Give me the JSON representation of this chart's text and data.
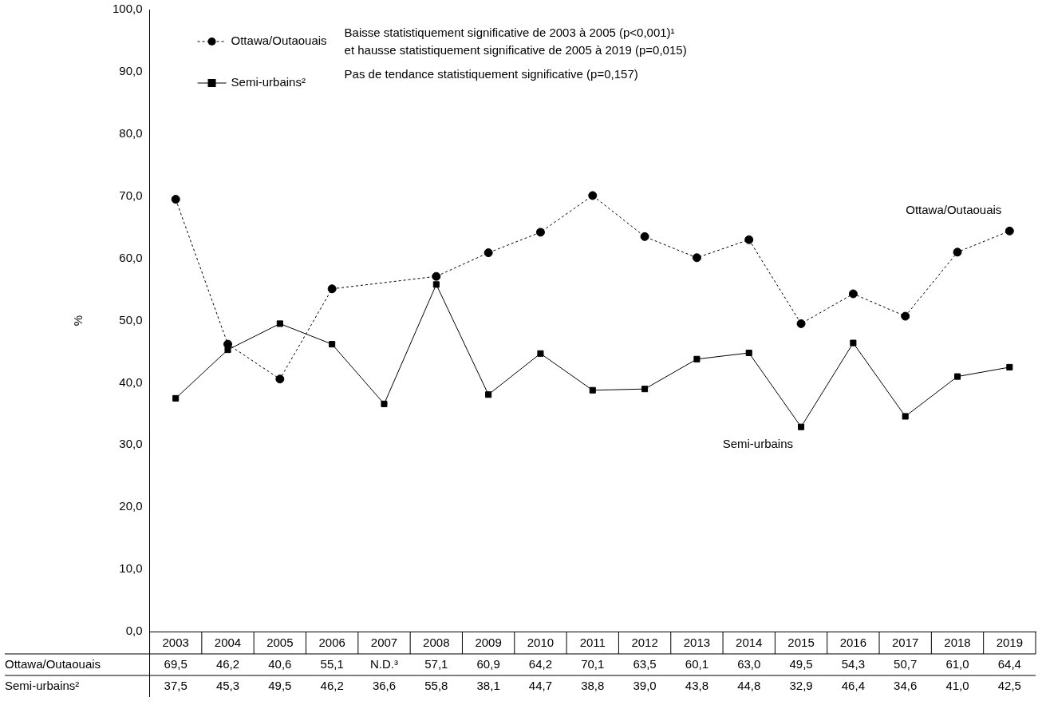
{
  "chart_data": {
    "type": "line",
    "categories": [
      "2003",
      "2004",
      "2005",
      "2006",
      "2007",
      "2008",
      "2009",
      "2010",
      "2011",
      "2012",
      "2013",
      "2014",
      "2015",
      "2016",
      "2017",
      "2018",
      "2019"
    ],
    "ylabel": "%",
    "ylim": [
      0,
      100
    ],
    "yticks": [
      {
        "value": 0,
        "label": "0,0"
      },
      {
        "value": 10,
        "label": "10,0"
      },
      {
        "value": 20,
        "label": "20,0"
      },
      {
        "value": 30,
        "label": "30,0"
      },
      {
        "value": 40,
        "label": "40,0"
      },
      {
        "value": 50,
        "label": "50,0"
      },
      {
        "value": 60,
        "label": "60,0"
      },
      {
        "value": 70,
        "label": "70,0"
      },
      {
        "value": 80,
        "label": "80,0"
      },
      {
        "value": 90,
        "label": "90,0"
      },
      {
        "value": 100,
        "label": "100,0"
      }
    ],
    "series": [
      {
        "name": "Ottawa/Outaouais",
        "color": "#000000",
        "marker": "circle",
        "line_style": "dashed",
        "values": [
          69.5,
          46.2,
          40.6,
          55.1,
          null,
          57.1,
          60.9,
          64.2,
          70.1,
          63.5,
          60.1,
          63.0,
          49.5,
          54.3,
          50.7,
          61.0,
          64.4
        ],
        "value_labels": [
          "69,5",
          "46,2",
          "40,6",
          "55,1",
          "N.D.³",
          "57,1",
          "60,9",
          "64,2",
          "70,1",
          "63,5",
          "60,1",
          "63,0",
          "49,5",
          "54,3",
          "50,7",
          "61,0",
          "64,4"
        ]
      },
      {
        "name": "Semi-urbains²",
        "color": "#000000",
        "marker": "square",
        "line_style": "solid",
        "values": [
          37.5,
          45.3,
          49.5,
          46.2,
          36.6,
          55.8,
          38.1,
          44.7,
          38.8,
          39.0,
          43.8,
          44.8,
          32.9,
          46.4,
          34.6,
          41.0,
          42.5
        ],
        "value_labels": [
          "37,5",
          "45,3",
          "49,5",
          "46,2",
          "36,6",
          "55,8",
          "38,1",
          "44,7",
          "38,8",
          "39,0",
          "43,8",
          "44,8",
          "32,9",
          "46,4",
          "34,6",
          "41,0",
          "42,5"
        ]
      }
    ],
    "annotations": [
      "Baisse statistiquement significative de 2003 à 2005 (p<0,001)¹",
      "et hausse statistiquement significative de 2005 à 2019 (p=0,015)",
      "Pas de tendance statistiquement significative (p=0,157)",
      {
        "text": "Ottawa/Outaouais",
        "x": "2019",
        "y": 64.4
      },
      {
        "text": "Semi-urbains",
        "x": "2015",
        "y": 32.9
      }
    ],
    "legend": "top left",
    "grid": false
  }
}
